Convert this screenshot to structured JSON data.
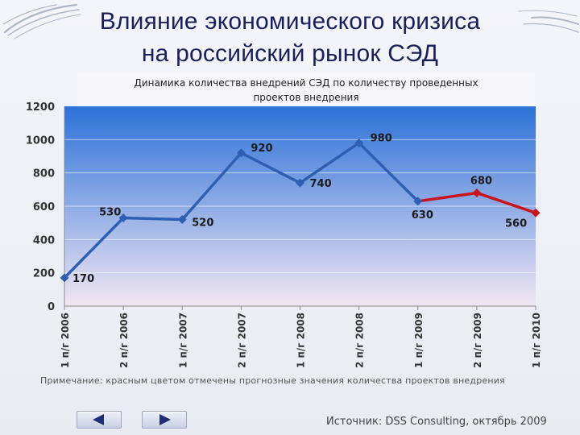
{
  "slide": {
    "title_line1": "Влияние экономического кризиса",
    "title_line2": "на российский рынок СЭД",
    "note": "Примечание: красным цветом отмечены прогнозные значения количества проектов внедрения",
    "source": "Источник: DSS Consulting, октябрь 2009"
  },
  "colors": {
    "actual_series": "#2f5fb3",
    "forecast_series": "#c8141c",
    "plot_top": "#2c72d8",
    "plot_bottom": "#f1e6f3",
    "title_text": "#1a1f5e"
  },
  "nav": {
    "prev_icon": "triangle-left-icon",
    "next_icon": "triangle-right-icon"
  },
  "chart_data": {
    "type": "line",
    "title": "Динамика количества внедрений СЭД по количеству проведенных проектов внедрения",
    "title_lines": [
      "Динамика количества внедрений СЭД по количеству проведенных",
      "проектов внедрения"
    ],
    "categories": [
      "1 п/г 2006",
      "2 п/г 2006",
      "1 п/г 2007",
      "2 п/г 2007",
      "1 п/г 2008",
      "2 п/г 2008",
      "1 п/г 2009",
      "2 п/г 2009",
      "1 п/г 2010"
    ],
    "values": [
      170,
      530,
      520,
      920,
      740,
      980,
      630,
      680,
      560
    ],
    "data_labels": [
      "170",
      "530",
      "520",
      "920",
      "740",
      "980",
      "630",
      "680",
      "560"
    ],
    "forecast_from_index": 6,
    "ylim": [
      0,
      1200
    ],
    "yticks": [
      0,
      200,
      400,
      600,
      800,
      1000,
      1200
    ],
    "ytick_labels": [
      "0",
      "200",
      "400",
      "600",
      "800",
      "1000",
      "1200"
    ],
    "grid": true,
    "xlabel": "",
    "ylabel": ""
  }
}
